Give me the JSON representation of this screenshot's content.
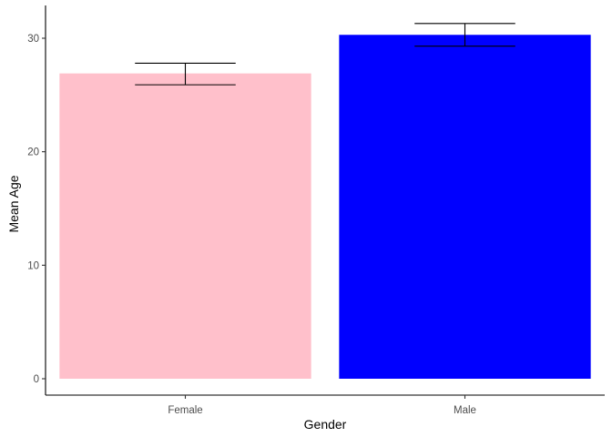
{
  "chart_data": {
    "type": "bar",
    "categories": [
      "Female",
      "Male"
    ],
    "values": [
      26.9,
      30.3
    ],
    "error_bars": [
      {
        "lower": 25.9,
        "upper": 27.8
      },
      {
        "lower": 29.3,
        "upper": 31.3
      }
    ],
    "bar_colors": [
      "#FFC0CB",
      "#0000FF"
    ],
    "xlabel": "Gender",
    "ylabel": "Mean Age",
    "ylim": [
      0,
      32.8
    ],
    "yticks": [
      0,
      10,
      20,
      30
    ],
    "grid": false,
    "legend": "none"
  }
}
